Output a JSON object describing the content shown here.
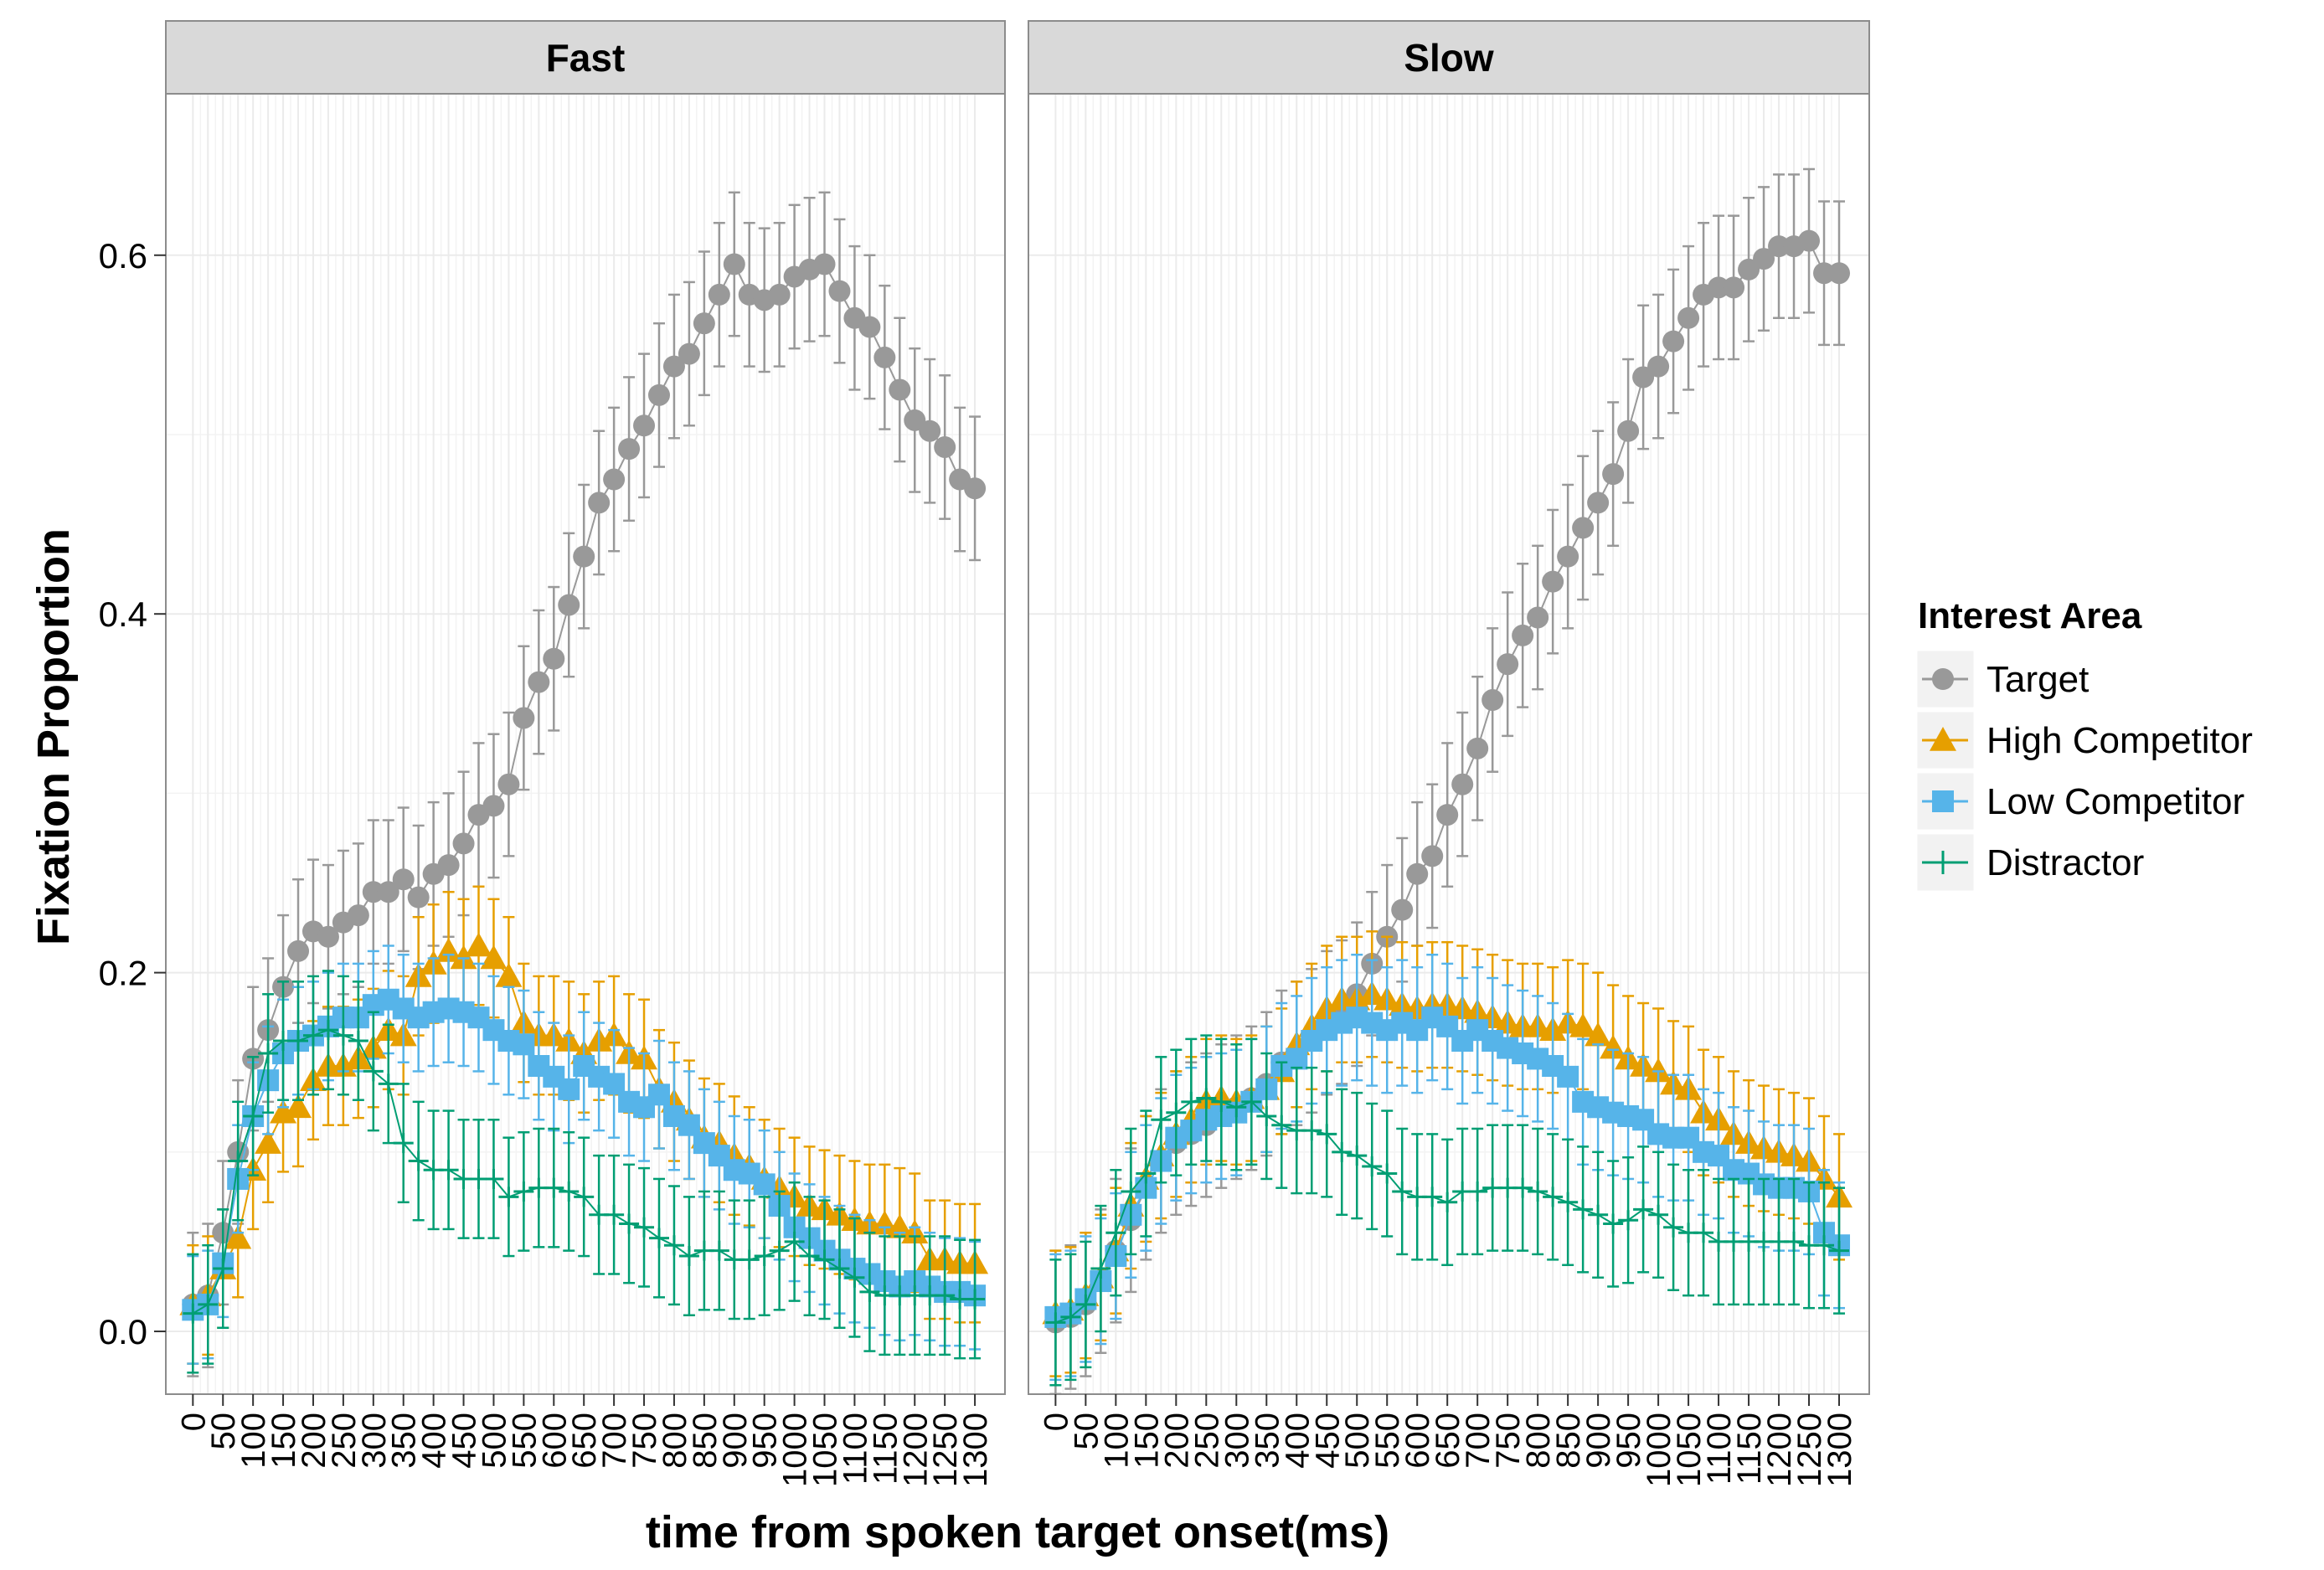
{
  "chart_data": {
    "type": "line",
    "xlabel": "time from spoken target onset(ms)",
    "ylabel": "Fixation Proportion",
    "ylim": [
      -0.035,
      0.69
    ],
    "y_ticks": [
      0.0,
      0.2,
      0.4,
      0.6
    ],
    "y_tick_labels": [
      "0.0",
      "0.2",
      "0.4",
      "0.6"
    ],
    "x_tick_labels": [
      "0",
      "50",
      "100",
      "150",
      "200",
      "250",
      "300",
      "350",
      "400",
      "450",
      "500",
      "550",
      "600",
      "650",
      "700",
      "750",
      "800",
      "850",
      "900",
      "950",
      "1000",
      "1050",
      "1100",
      "1150",
      "1200",
      "1250",
      "1300"
    ],
    "x": [
      0,
      25,
      50,
      75,
      100,
      125,
      150,
      175,
      200,
      225,
      250,
      275,
      300,
      325,
      350,
      375,
      400,
      425,
      450,
      475,
      500,
      525,
      550,
      575,
      600,
      625,
      650,
      675,
      700,
      725,
      750,
      775,
      800,
      825,
      850,
      875,
      900,
      925,
      950,
      975,
      1000,
      1025,
      1050,
      1075,
      1100,
      1125,
      1150,
      1175,
      1200,
      1225,
      1250,
      1275,
      1300
    ],
    "grid": true,
    "legend_position": "right",
    "legend_title": "Interest Area",
    "panels": [
      {
        "title": "Fast",
        "series": [
          {
            "name": "Target",
            "color": "#999999",
            "marker": "circle",
            "err": 0.04,
            "values": [
              0.015,
              0.02,
              0.055,
              0.1,
              0.152,
              0.168,
              0.192,
              0.212,
              0.223,
              0.22,
              0.228,
              0.232,
              0.245,
              0.245,
              0.252,
              0.242,
              0.255,
              0.26,
              0.272,
              0.288,
              0.293,
              0.305,
              0.342,
              0.362,
              0.375,
              0.405,
              0.432,
              0.462,
              0.475,
              0.492,
              0.505,
              0.522,
              0.538,
              0.545,
              0.562,
              0.578,
              0.595,
              0.578,
              0.575,
              0.578,
              0.588,
              0.592,
              0.595,
              0.58,
              0.565,
              0.56,
              0.543,
              0.525,
              0.508,
              0.502,
              0.493,
              0.475,
              0.47
            ]
          },
          {
            "name": "High Competitor",
            "color": "#E69F00",
            "marker": "triangle",
            "err": 0.033,
            "values": [
              0.015,
              0.02,
              0.035,
              0.052,
              0.09,
              0.105,
              0.122,
              0.125,
              0.14,
              0.148,
              0.148,
              0.152,
              0.158,
              0.168,
              0.165,
              0.198,
              0.205,
              0.212,
              0.208,
              0.215,
              0.208,
              0.198,
              0.172,
              0.165,
              0.165,
              0.162,
              0.155,
              0.162,
              0.165,
              0.155,
              0.152,
              0.135,
              0.128,
              0.118,
              0.108,
              0.105,
              0.098,
              0.092,
              0.085,
              0.08,
              0.075,
              0.07,
              0.068,
              0.065,
              0.062,
              0.06,
              0.06,
              0.058,
              0.055,
              0.04,
              0.04,
              0.038,
              0.038
            ]
          },
          {
            "name": "Low Competitor",
            "color": "#56B4E9",
            "marker": "square",
            "err": 0.03,
            "values": [
              0.012,
              0.015,
              0.038,
              0.085,
              0.12,
              0.14,
              0.155,
              0.162,
              0.165,
              0.17,
              0.175,
              0.175,
              0.182,
              0.185,
              0.18,
              0.175,
              0.178,
              0.18,
              0.178,
              0.175,
              0.168,
              0.162,
              0.16,
              0.148,
              0.142,
              0.135,
              0.148,
              0.142,
              0.138,
              0.128,
              0.125,
              0.132,
              0.12,
              0.115,
              0.105,
              0.098,
              0.09,
              0.088,
              0.082,
              0.07,
              0.058,
              0.052,
              0.045,
              0.04,
              0.035,
              0.032,
              0.028,
              0.025,
              0.028,
              0.025,
              0.022,
              0.022,
              0.02
            ]
          },
          {
            "name": "Distractor",
            "color": "#009E73",
            "marker": "cross",
            "err": 0.033,
            "values": [
              0.01,
              0.015,
              0.035,
              0.095,
              0.12,
              0.155,
              0.162,
              0.162,
              0.165,
              0.168,
              0.165,
              0.162,
              0.145,
              0.138,
              0.105,
              0.095,
              0.09,
              0.09,
              0.085,
              0.085,
              0.085,
              0.075,
              0.078,
              0.08,
              0.08,
              0.078,
              0.075,
              0.065,
              0.065,
              0.06,
              0.058,
              0.052,
              0.048,
              0.042,
              0.045,
              0.045,
              0.04,
              0.04,
              0.042,
              0.045,
              0.05,
              0.042,
              0.04,
              0.035,
              0.03,
              0.022,
              0.02,
              0.02,
              0.02,
              0.02,
              0.02,
              0.018,
              0.018
            ]
          }
        ]
      },
      {
        "title": "Slow",
        "series": [
          {
            "name": "Target",
            "color": "#999999",
            "marker": "circle",
            "err": 0.04,
            "values": [
              0.005,
              0.008,
              0.015,
              0.028,
              0.045,
              0.062,
              0.08,
              0.095,
              0.105,
              0.11,
              0.115,
              0.12,
              0.125,
              0.13,
              0.138,
              0.15,
              0.155,
              0.162,
              0.172,
              0.178,
              0.188,
              0.205,
              0.22,
              0.235,
              0.255,
              0.265,
              0.288,
              0.305,
              0.325,
              0.352,
              0.372,
              0.388,
              0.398,
              0.418,
              0.432,
              0.448,
              0.462,
              0.478,
              0.502,
              0.532,
              0.538,
              0.552,
              0.565,
              0.578,
              0.582,
              0.582,
              0.592,
              0.598,
              0.605,
              0.605,
              0.608,
              0.59,
              0.59
            ]
          },
          {
            "name": "High Competitor",
            "color": "#E69F00",
            "marker": "triangle",
            "err": 0.035,
            "values": [
              0.01,
              0.012,
              0.02,
              0.03,
              0.045,
              0.07,
              0.085,
              0.098,
              0.11,
              0.118,
              0.128,
              0.13,
              0.128,
              0.13,
              0.135,
              0.145,
              0.16,
              0.17,
              0.18,
              0.185,
              0.185,
              0.188,
              0.185,
              0.182,
              0.18,
              0.182,
              0.182,
              0.18,
              0.178,
              0.175,
              0.172,
              0.17,
              0.17,
              0.168,
              0.172,
              0.17,
              0.165,
              0.158,
              0.152,
              0.148,
              0.145,
              0.138,
              0.135,
              0.122,
              0.118,
              0.11,
              0.105,
              0.102,
              0.1,
              0.098,
              0.095,
              0.085,
              0.075
            ]
          },
          {
            "name": "Low Competitor",
            "color": "#56B4E9",
            "marker": "square",
            "err": 0.035,
            "values": [
              0.008,
              0.01,
              0.018,
              0.028,
              0.042,
              0.065,
              0.08,
              0.095,
              0.108,
              0.112,
              0.118,
              0.12,
              0.122,
              0.128,
              0.135,
              0.148,
              0.152,
              0.162,
              0.168,
              0.172,
              0.175,
              0.172,
              0.168,
              0.172,
              0.168,
              0.175,
              0.17,
              0.162,
              0.168,
              0.162,
              0.158,
              0.155,
              0.152,
              0.148,
              0.142,
              0.128,
              0.125,
              0.122,
              0.12,
              0.118,
              0.11,
              0.108,
              0.108,
              0.1,
              0.098,
              0.09,
              0.088,
              0.082,
              0.08,
              0.08,
              0.078,
              0.055,
              0.048
            ]
          },
          {
            "name": "Distractor",
            "color": "#009E73",
            "marker": "cross",
            "err": 0.035,
            "values": [
              0.005,
              0.008,
              0.015,
              0.035,
              0.055,
              0.078,
              0.088,
              0.118,
              0.122,
              0.128,
              0.13,
              0.128,
              0.125,
              0.128,
              0.12,
              0.115,
              0.112,
              0.112,
              0.11,
              0.1,
              0.098,
              0.092,
              0.088,
              0.078,
              0.075,
              0.075,
              0.072,
              0.078,
              0.078,
              0.08,
              0.08,
              0.08,
              0.078,
              0.075,
              0.072,
              0.068,
              0.065,
              0.06,
              0.062,
              0.068,
              0.065,
              0.058,
              0.055,
              0.055,
              0.05,
              0.05,
              0.05,
              0.05,
              0.05,
              0.05,
              0.048,
              0.048,
              0.045
            ]
          }
        ]
      }
    ]
  }
}
